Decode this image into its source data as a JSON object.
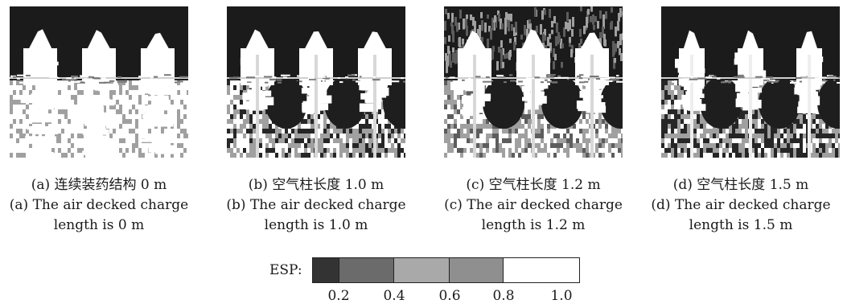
{
  "figure": {
    "panels": [
      {
        "zh_caption": "(a) 连续装药结构 0 m",
        "en_caption_line1": "(a) The air decked charge",
        "en_caption_line2": "length is 0 m"
      },
      {
        "zh_caption": "(b) 空气柱长度 1.0 m",
        "en_caption_line1": "(b) The air decked charge",
        "en_caption_line2": "length is 1.0 m"
      },
      {
        "zh_caption": "(c) 空气柱长度 1.2 m",
        "en_caption_line1": "(c) The air decked charge",
        "en_caption_line2": "length is 1.2 m"
      },
      {
        "zh_caption": "(d) 空气柱长度 1.5 m",
        "en_caption_line1": "(d) The air decked charge",
        "en_caption_line2": "length is 1.5 m"
      }
    ],
    "legend": {
      "title": "ESP:",
      "ticks": [
        "0.2",
        "0.4",
        "0.6",
        "0.8",
        "1.0"
      ],
      "colors": [
        "#333333",
        "#6b6b6b",
        "#a9a9a9",
        "#8f8f8f",
        "#ffffff"
      ]
    }
  }
}
